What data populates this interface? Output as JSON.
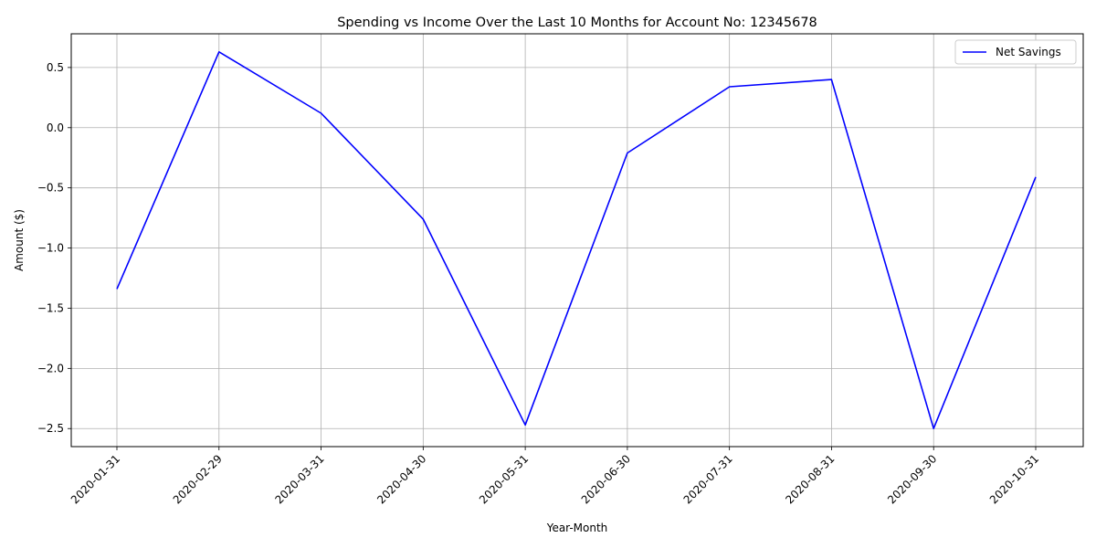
{
  "chart_data": {
    "type": "line",
    "title": "Spending vs Income Over the Last 10 Months for Account No: 12345678",
    "xlabel": "Year-Month",
    "ylabel": "Amount ($)",
    "x": [
      "2020-01-31",
      "2020-02-29",
      "2020-03-31",
      "2020-04-30",
      "2020-05-31",
      "2020-06-30",
      "2020-07-31",
      "2020-08-31",
      "2020-09-30",
      "2020-10-31"
    ],
    "y_ticks": [
      -2.5,
      -2.0,
      -1.5,
      -1.0,
      -0.5,
      0.0,
      0.5
    ],
    "y_tick_labels": [
      "−2.5",
      "−2.0",
      "−1.5",
      "−1.0",
      "−0.5",
      "0.0",
      "0.5"
    ],
    "ylim": [
      -2.65,
      0.78
    ],
    "grid": true,
    "legend_position": "top-right",
    "series": [
      {
        "name": "Net Savings",
        "color": "#0000ff",
        "values": [
          -1.34,
          0.63,
          0.12,
          -0.76,
          -2.47,
          -0.21,
          0.34,
          0.4,
          -2.5,
          -0.41
        ]
      }
    ]
  }
}
